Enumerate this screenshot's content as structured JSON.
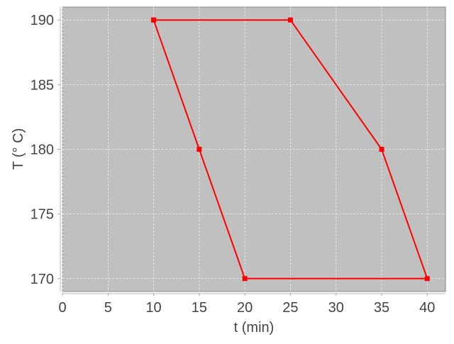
{
  "chart_data": {
    "type": "line",
    "title": "",
    "xlabel": "t (min)",
    "ylabel": "T (° C)",
    "xlim": [
      0,
      42
    ],
    "ylim": [
      169,
      191
    ],
    "xticks": [
      0,
      5,
      10,
      15,
      20,
      25,
      30,
      35,
      40
    ],
    "yticks": [
      170,
      175,
      180,
      185,
      190
    ],
    "grid": true,
    "legend": "none",
    "background_color": "#c0c0c0",
    "series": [
      {
        "color": "#ff0000",
        "marker": "square",
        "x": [
          10,
          25,
          35,
          40,
          20,
          15,
          10
        ],
        "y": [
          190,
          190,
          180,
          170,
          170,
          180,
          190
        ]
      }
    ]
  }
}
